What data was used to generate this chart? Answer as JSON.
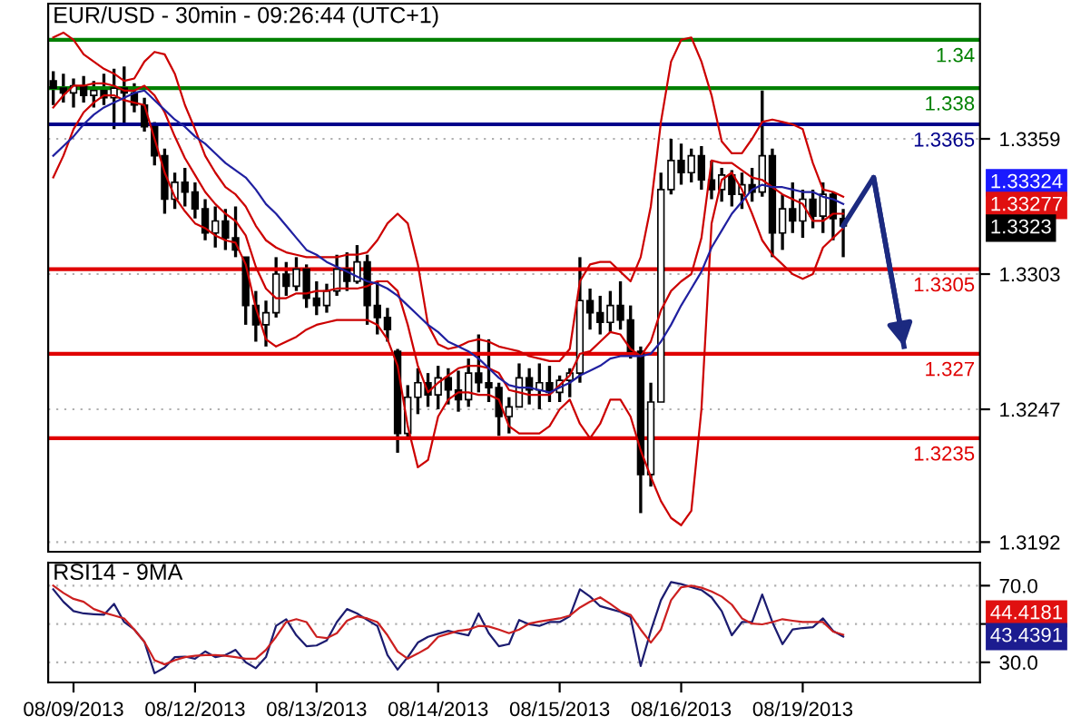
{
  "chart_data": [
    {
      "type": "candlestick",
      "title": "EUR/USD - 30min - 09:26:44 (UTC+1)",
      "categories": [
        null,
        null,
        null,
        null,
        null,
        null,
        null,
        null,
        null,
        null,
        null,
        null,
        null,
        null,
        null,
        null,
        null,
        null,
        null,
        null,
        null,
        null,
        null,
        null,
        null,
        null,
        null,
        null,
        null,
        null,
        null,
        null,
        null,
        null,
        null,
        null,
        null,
        null,
        null,
        null,
        null,
        null,
        null,
        null,
        null,
        null,
        null,
        null,
        null,
        null,
        null,
        null,
        null,
        null,
        null,
        null,
        null,
        null,
        null,
        null,
        null,
        null,
        null,
        null,
        null,
        null,
        null,
        null,
        null,
        null,
        null,
        null,
        null,
        null,
        null,
        null,
        null,
        null,
        null,
        null,
        null,
        null,
        null,
        null,
        null,
        null,
        null,
        null,
        null,
        null,
        null,
        null
      ],
      "ohlc": [
        [
          1.3383,
          1.3387,
          1.3373,
          1.338
        ],
        [
          1.338,
          1.3386,
          1.3374,
          1.3378
        ],
        [
          1.3378,
          1.3384,
          1.3372,
          1.3381
        ],
        [
          1.3381,
          1.3385,
          1.3374,
          1.3377
        ],
        [
          1.3377,
          1.3383,
          1.3372,
          1.3379
        ],
        [
          1.3379,
          1.3386,
          1.3373,
          1.3376
        ],
        [
          1.3376,
          1.3388,
          1.3363,
          1.338
        ],
        [
          1.338,
          1.3389,
          1.3365,
          1.3378
        ],
        [
          1.3378,
          1.3382,
          1.337,
          1.3373
        ],
        [
          1.3373,
          1.3376,
          1.3362,
          1.3364
        ],
        [
          1.3364,
          1.3366,
          1.3348,
          1.3352
        ],
        [
          1.3352,
          1.3355,
          1.3328,
          1.3334
        ],
        [
          1.3334,
          1.3345,
          1.333,
          1.3341
        ],
        [
          1.3341,
          1.3347,
          1.3331,
          1.3337
        ],
        [
          1.3337,
          1.3341,
          1.3326,
          1.333
        ],
        [
          1.333,
          1.3334,
          1.3317,
          1.332
        ],
        [
          1.332,
          1.3331,
          1.3314,
          1.3325
        ],
        [
          1.3325,
          1.333,
          1.3313,
          1.3318
        ],
        [
          1.3318,
          1.3331,
          1.331,
          1.3313
        ],
        [
          1.331,
          1.331,
          1.3282,
          1.329
        ],
        [
          1.329,
          1.3296,
          1.3275,
          1.3282
        ],
        [
          1.3282,
          1.3292,
          1.3273,
          1.3287
        ],
        [
          1.3287,
          1.331,
          1.3285,
          1.3303
        ],
        [
          1.3303,
          1.3308,
          1.3294,
          1.3298
        ],
        [
          1.3298,
          1.331,
          1.3296,
          1.3305
        ],
        [
          1.3305,
          1.3307,
          1.3289,
          1.3293
        ],
        [
          1.3293,
          1.33,
          1.3286,
          1.329
        ],
        [
          1.329,
          1.3299,
          1.3287,
          1.3296
        ],
        [
          1.3296,
          1.3311,
          1.3294,
          1.3305
        ],
        [
          1.3305,
          1.3312,
          1.3296,
          1.33
        ],
        [
          1.33,
          1.3315,
          1.3299,
          1.3308
        ],
        [
          1.3308,
          1.3311,
          1.3282,
          1.329
        ],
        [
          1.329,
          1.33,
          1.3278,
          1.3285
        ],
        [
          1.3285,
          1.3289,
          1.3275,
          1.328
        ],
        [
          1.3271,
          1.3272,
          1.3229,
          1.3237
        ],
        [
          1.3237,
          1.3257,
          1.3235,
          1.3252
        ],
        [
          1.3252,
          1.3264,
          1.3245,
          1.3258
        ],
        [
          1.3258,
          1.3262,
          1.3248,
          1.3253
        ],
        [
          1.3253,
          1.3265,
          1.3247,
          1.326
        ],
        [
          1.326,
          1.3264,
          1.3249,
          1.3255
        ],
        [
          1.3255,
          1.3263,
          1.3246,
          1.3251
        ],
        [
          1.3251,
          1.3268,
          1.3248,
          1.3262
        ],
        [
          1.3262,
          1.3278,
          1.3254,
          1.3258
        ],
        [
          1.3258,
          1.3276,
          1.325,
          1.3256
        ],
        [
          1.3256,
          1.3258,
          1.3236,
          1.3244
        ],
        [
          1.3244,
          1.3252,
          1.3237,
          1.3248
        ],
        [
          1.3248,
          1.3266,
          1.3248,
          1.326
        ],
        [
          1.326,
          1.3264,
          1.3249,
          1.3255
        ],
        [
          1.3255,
          1.3266,
          1.3247,
          1.3258
        ],
        [
          1.3258,
          1.3265,
          1.325,
          1.3254
        ],
        [
          1.3254,
          1.3261,
          1.325,
          1.3259
        ],
        [
          1.3259,
          1.3264,
          1.3252,
          1.3262
        ],
        [
          1.3262,
          1.331,
          1.3258,
          1.3292
        ],
        [
          1.3292,
          1.3297,
          1.328,
          1.3287
        ],
        [
          1.3287,
          1.3294,
          1.3278,
          1.3283
        ],
        [
          1.3283,
          1.3296,
          1.3279,
          1.329
        ],
        [
          1.329,
          1.33,
          1.328,
          1.3284
        ],
        [
          1.3284,
          1.329,
          1.3268,
          1.3271
        ],
        [
          1.3271,
          1.3273,
          1.3204,
          1.322
        ],
        [
          1.322,
          1.3258,
          1.3215,
          1.325
        ],
        [
          1.325,
          1.3345,
          1.325,
          1.3338
        ],
        [
          1.3338,
          1.3359,
          1.3336,
          1.335
        ],
        [
          1.335,
          1.3357,
          1.334,
          1.3345
        ],
        [
          1.3345,
          1.3355,
          1.3341,
          1.3352
        ],
        [
          1.3352,
          1.3356,
          1.3338,
          1.3342
        ],
        [
          1.3342,
          1.335,
          1.3334,
          1.3338
        ],
        [
          1.3338,
          1.3347,
          1.3333,
          1.3344
        ],
        [
          1.3344,
          1.3346,
          1.3331,
          1.3336
        ],
        [
          1.3336,
          1.3345,
          1.333,
          1.334
        ],
        [
          1.334,
          1.3347,
          1.3333,
          1.3337
        ],
        [
          1.3337,
          1.3379,
          1.3335,
          1.3352
        ],
        [
          1.3352,
          1.3355,
          1.331,
          1.332
        ],
        [
          1.332,
          1.3336,
          1.3313,
          1.333
        ],
        [
          1.333,
          1.3341,
          1.332,
          1.3325
        ],
        [
          1.3325,
          1.3338,
          1.3318,
          1.3334
        ],
        [
          1.3334,
          1.3338,
          1.3322,
          1.3327
        ],
        [
          1.3327,
          1.3341,
          1.332,
          1.3336
        ],
        [
          1.3336,
          1.3337,
          1.3317,
          1.3326
        ],
        [
          1.3326,
          1.333,
          1.331,
          1.3323
        ],
        null,
        null,
        null,
        null,
        null,
        null,
        null,
        null,
        null,
        null,
        null,
        null,
        null
      ],
      "series": [
        {
          "type": "line",
          "color": "#cc0000",
          "values": [
            1.3401,
            1.3403,
            1.34,
            1.3394,
            1.3391,
            1.3388,
            1.3386,
            1.3383,
            1.3384,
            1.3391,
            1.3395,
            1.3394,
            1.3386,
            1.3373,
            1.3363,
            1.3352,
            1.3345,
            1.3339,
            1.3336,
            1.3331,
            1.3323,
            1.3317,
            1.3314,
            1.3312,
            1.3311,
            1.331,
            1.331,
            1.331,
            1.331,
            1.3311,
            1.3311,
            1.3312,
            1.3317,
            1.3324,
            1.3328,
            1.3324,
            1.3307,
            1.3282,
            1.3274,
            1.3272,
            1.3273,
            1.3275,
            1.3276,
            1.3275,
            1.3273,
            1.3272,
            1.3271,
            1.3269,
            1.3268,
            1.3267,
            1.3267,
            1.3272,
            1.33,
            1.3307,
            1.3308,
            1.3308,
            1.3304,
            1.33,
            1.331,
            1.3331,
            1.3366,
            1.3391,
            1.34,
            1.3401,
            1.3391,
            1.3377,
            1.3358,
            1.3353,
            1.3353,
            1.3359,
            1.3366,
            1.3367,
            1.3366,
            1.3365,
            1.3363,
            1.3349,
            1.3338,
            1.3337,
            1.3335,
            null,
            null,
            null,
            null,
            null,
            null,
            null,
            null,
            null,
            null,
            null,
            null,
            null
          ]
        },
        {
          "type": "line",
          "color": "#cc0000",
          "values": [
            1.3372,
            1.3377,
            1.3381,
            1.3381,
            1.3382,
            1.3382,
            1.3381,
            1.3379,
            1.3379,
            1.3381,
            1.3377,
            1.337,
            1.336,
            1.3351,
            1.3344,
            1.3337,
            1.3332,
            1.3328,
            1.3325,
            1.3319,
            1.3306,
            1.3297,
            1.3293,
            1.3293,
            1.3295,
            1.3295,
            1.3296,
            1.3296,
            1.3297,
            1.3297,
            1.3297,
            1.3298,
            1.33,
            1.33,
            1.3296,
            1.3282,
            1.3265,
            1.3254,
            1.3258,
            1.3261,
            1.3264,
            1.3265,
            1.3265,
            1.3264,
            1.3262,
            1.3255,
            1.3254,
            1.3253,
            1.3253,
            1.3253,
            1.3257,
            1.3261,
            1.327,
            1.3271,
            1.3275,
            1.3279,
            1.3278,
            1.3272,
            1.3269,
            1.3275,
            1.3288,
            1.3296,
            1.33,
            1.3303,
            1.3318,
            1.335,
            1.3349,
            1.3349,
            1.3346,
            1.3343,
            1.3342,
            1.3339,
            1.3336,
            1.3334,
            1.3332,
            1.3325,
            1.3325,
            1.3328,
            1.3328,
            null,
            null,
            null,
            null,
            null,
            null,
            null,
            null,
            null,
            null,
            null,
            null,
            null
          ]
        },
        {
          "type": "line",
          "color": "#cc0000",
          "values": [
            1.3343,
            1.3352,
            1.3363,
            1.337,
            1.3374,
            1.3377,
            1.3377,
            1.3375,
            1.3374,
            1.3373,
            1.3359,
            1.3345,
            1.3335,
            1.3329,
            1.3324,
            1.3322,
            1.3319,
            1.3317,
            1.3316,
            1.3307,
            1.3289,
            1.3276,
            1.3273,
            1.3275,
            1.3277,
            1.328,
            1.3282,
            1.3283,
            1.3284,
            1.3284,
            1.3284,
            1.3284,
            1.3282,
            1.3276,
            1.3265,
            1.324,
            1.3223,
            1.3226,
            1.3244,
            1.3251,
            1.3254,
            1.3254,
            1.3253,
            1.3253,
            1.3251,
            1.324,
            1.3237,
            1.3237,
            1.3237,
            1.324,
            1.3247,
            1.3251,
            1.3241,
            1.3235,
            1.3241,
            1.3251,
            1.3251,
            1.3244,
            1.323,
            1.3219,
            1.3209,
            1.3202,
            1.3199,
            1.3205,
            1.3247,
            1.3324,
            1.3342,
            1.3345,
            1.3338,
            1.3328,
            1.3317,
            1.3311,
            1.3307,
            1.3303,
            1.3301,
            1.3303,
            1.3314,
            1.3318,
            1.3322,
            null,
            null,
            null,
            null,
            null,
            null,
            null,
            null,
            null,
            null,
            null,
            null,
            null
          ]
        },
        {
          "type": "line",
          "color": "#2020a0",
          "values": [
            1.3352,
            1.3356,
            1.336,
            1.3365,
            1.3369,
            1.3372,
            1.3374,
            1.3376,
            1.3378,
            1.3379,
            1.3375,
            1.3371,
            1.3367,
            1.3364,
            1.336,
            1.3357,
            1.3353,
            1.3349,
            1.3346,
            1.3343,
            1.3338,
            1.3332,
            1.3328,
            1.3323,
            1.3318,
            1.3313,
            1.3311,
            1.3308,
            1.3306,
            1.3304,
            1.3302,
            1.33,
            1.3299,
            1.3297,
            1.3294,
            1.329,
            1.3286,
            1.3282,
            1.3279,
            1.3275,
            1.3273,
            1.3271,
            1.3268,
            1.3264,
            1.326,
            1.3257,
            1.3256,
            1.3256,
            1.3255,
            1.3254,
            1.3256,
            1.3258,
            1.3261,
            1.3263,
            1.3265,
            1.3268,
            1.3269,
            1.3269,
            1.3269,
            1.327,
            1.3275,
            1.3282,
            1.329,
            1.3297,
            1.3304,
            1.3314,
            1.3321,
            1.3328,
            1.3333,
            1.3338,
            1.334,
            1.3339,
            1.3339,
            1.3338,
            1.3337,
            1.3337,
            1.3335,
            1.3334,
            1.3332,
            null,
            null,
            null,
            null,
            null,
            null,
            null,
            null,
            null,
            null,
            null,
            null,
            null
          ]
        },
        {
          "type": "line",
          "color": "#1c2a80",
          "values": [
            null,
            null,
            null,
            null,
            null,
            null,
            null,
            null,
            null,
            null,
            null,
            null,
            null,
            null,
            null,
            null,
            null,
            null,
            null,
            null,
            null,
            null,
            null,
            null,
            null,
            null,
            null,
            null,
            null,
            null,
            null,
            null,
            null,
            null,
            null,
            null,
            null,
            null,
            null,
            null,
            null,
            null,
            null,
            null,
            null,
            null,
            null,
            null,
            null,
            null,
            null,
            null,
            null,
            null,
            null,
            null,
            null,
            null,
            null,
            null,
            null,
            null,
            null,
            null,
            null,
            null,
            null,
            null,
            null,
            null,
            null,
            null,
            null,
            null,
            null,
            null,
            null,
            null,
            1.3323,
            null,
            null,
            1.3343,
            null,
            null,
            1.3273,
            null,
            null,
            null,
            null,
            null,
            null,
            null
          ]
        }
      ],
      "ylim": [
        1.3188,
        1.3415
      ],
      "yticks": [
        1.3359,
        1.3303,
        1.3247,
        1.3192
      ],
      "grid": "y",
      "tick_labels": "y",
      "ref_lines": [
        {
          "axis": "y",
          "value": 1.34,
          "label": "1.34",
          "color": "#008000"
        },
        {
          "axis": "y",
          "value": 1.338,
          "label": "1.338",
          "color": "#008000"
        },
        {
          "axis": "y",
          "value": 1.3365,
          "label": "1.3365",
          "color": "#00008b"
        },
        {
          "axis": "y",
          "value": 1.3305,
          "label": "1.3305",
          "color": "#e00000"
        },
        {
          "axis": "y",
          "value": 1.327,
          "label": "1.327",
          "color": "#e00000"
        },
        {
          "axis": "y",
          "value": 1.3235,
          "label": "1.3235",
          "color": "#e00000"
        }
      ],
      "annotations": [
        "1.33324",
        "1.33277",
        "1.3323"
      ]
    },
    {
      "type": "line",
      "title": "RSI14 - 9MA",
      "categories": [
        null,
        null,
        "08/09/2013",
        null,
        null,
        null,
        null,
        null,
        null,
        null,
        null,
        null,
        null,
        null,
        "08/12/2013",
        null,
        null,
        null,
        null,
        null,
        null,
        null,
        null,
        null,
        null,
        null,
        "08/13/2013",
        null,
        null,
        null,
        null,
        null,
        null,
        null,
        null,
        null,
        null,
        null,
        "08/14/2013",
        null,
        null,
        null,
        null,
        null,
        null,
        null,
        null,
        null,
        null,
        null,
        "08/15/2013",
        null,
        null,
        null,
        null,
        null,
        null,
        null,
        null,
        null,
        null,
        null,
        "08/16/2013",
        null,
        null,
        null,
        null,
        null,
        null,
        null,
        null,
        null,
        null,
        null,
        "08/19/2013",
        null,
        null,
        null,
        null,
        null,
        null,
        null,
        null,
        null,
        null,
        null,
        null,
        null,
        null,
        null,
        null,
        null
      ],
      "series": [
        {
          "color": "#1c1c70",
          "values": [
            68.1,
            61.6,
            56.7,
            55.5,
            55.1,
            54.8,
            60.5,
            51.0,
            47.1,
            40.7,
            24.3,
            27.3,
            32.7,
            33.0,
            31.9,
            35.7,
            32.7,
            33.8,
            36.5,
            30.0,
            26.9,
            32.7,
            49.0,
            52.5,
            44.1,
            38.4,
            38.8,
            41.4,
            51.0,
            57.8,
            55.5,
            52.1,
            49.0,
            33.8,
            26.2,
            32.7,
            40.3,
            43.3,
            44.9,
            46.4,
            45.2,
            44.1,
            55.5,
            45.2,
            38.4,
            39.5,
            52.1,
            49.8,
            49.0,
            51.0,
            51.0,
            54.0,
            68.1,
            64.3,
            59.3,
            57.8,
            56.3,
            53.6,
            28.1,
            46.4,
            62.4,
            71.9,
            70.8,
            69.2,
            67.7,
            63.9,
            56.7,
            44.1,
            51.0,
            51.0,
            65.4,
            51.0,
            39.5,
            47.1,
            47.9,
            48.3,
            52.9,
            46.4,
            43.4,
            null,
            null,
            null,
            null,
            null,
            null,
            null,
            null,
            null,
            null,
            null,
            null,
            null
          ]
        },
        {
          "color": "#cc2020",
          "values": [
            70.0,
            66.2,
            63.1,
            61.6,
            57.8,
            55.9,
            54.4,
            52.9,
            47.1,
            40.7,
            31.1,
            28.9,
            31.1,
            32.7,
            33.4,
            33.8,
            33.8,
            33.4,
            32.7,
            31.9,
            31.9,
            36.5,
            43.3,
            51.0,
            52.5,
            51.0,
            43.3,
            42.6,
            45.2,
            51.7,
            54.0,
            52.9,
            51.0,
            44.1,
            35.7,
            31.9,
            34.6,
            37.6,
            43.3,
            44.9,
            46.4,
            47.1,
            49.0,
            48.7,
            47.1,
            45.2,
            47.1,
            50.2,
            51.3,
            52.1,
            52.9,
            54.4,
            58.6,
            61.6,
            63.9,
            60.5,
            56.7,
            54.8,
            47.1,
            40.3,
            47.1,
            62.4,
            69.2,
            70.0,
            68.9,
            67.0,
            64.3,
            60.1,
            52.9,
            50.2,
            49.8,
            51.0,
            52.5,
            51.7,
            51.0,
            51.0,
            51.0,
            46.0,
            44.4,
            null,
            null,
            null,
            null,
            null,
            null,
            null,
            null,
            null,
            null,
            null,
            null,
            null
          ]
        }
      ],
      "ylim": [
        19.5,
        82
      ],
      "yticks": [
        {
          "value": 70,
          "label": "70.0"
        },
        {
          "value": 50,
          "label": null
        },
        {
          "value": 30,
          "label": "30.0"
        }
      ],
      "grid": "y",
      "annotations": [
        "44.4181",
        "43.4391"
      ]
    }
  ]
}
